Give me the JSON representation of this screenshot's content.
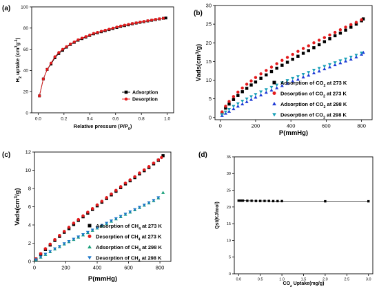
{
  "chart_data": [
    {
      "panel": "(a)",
      "type": "line",
      "title": "",
      "xlabel": "Relative pressure (P/P0)",
      "xlabel_main": "Relative pressure (P/P",
      "xlabel_sub": "0",
      "xlabel_tail": ")",
      "ylabel": "H2 uptake (cm3g-1)",
      "ylabel_parts": {
        "a": "H",
        "a_sub": "2",
        "b": " uptake (cm",
        "b_sup": "3",
        "c": "g",
        "c_sup": "-1",
        "d": ")"
      },
      "xlim": [
        -0.05,
        1.05
      ],
      "ylim": [
        0,
        100
      ],
      "xticks": [
        "0.0",
        "0.2",
        "0.4",
        "0.6",
        "0.8",
        "1.0"
      ],
      "yticks": [
        "0",
        "20",
        "40",
        "60",
        "80",
        "100"
      ],
      "legend": "center-right",
      "series": [
        {
          "name": "Adsorption",
          "marker": "square",
          "color": "#000000",
          "x": [
            0.01,
            0.04,
            0.07,
            0.1,
            0.13,
            0.16,
            0.19,
            0.22,
            0.25,
            0.28,
            0.31,
            0.34,
            0.37,
            0.4,
            0.43,
            0.46,
            0.49,
            0.52,
            0.55,
            0.58,
            0.61,
            0.64,
            0.67,
            0.7,
            0.73,
            0.76,
            0.79,
            0.82,
            0.85,
            0.88,
            0.91,
            0.94,
            0.97,
            0.99
          ],
          "y": [
            16,
            32,
            41,
            46,
            52,
            56,
            59,
            62,
            64.5,
            66.5,
            68.5,
            70,
            71.5,
            73,
            74.5,
            75.5,
            76.5,
            77.5,
            78.5,
            79.5,
            80.5,
            81.5,
            82.3,
            83,
            84,
            84.7,
            85.4,
            86,
            86.7,
            87.3,
            88,
            88.6,
            89.2,
            89.5
          ]
        },
        {
          "name": "Desorption",
          "marker": "circle",
          "color": "#e31a1c",
          "x": [
            0.01,
            0.04,
            0.07,
            0.1,
            0.13,
            0.16,
            0.19,
            0.22,
            0.25,
            0.28,
            0.31,
            0.34,
            0.37,
            0.4,
            0.43,
            0.46,
            0.49,
            0.52,
            0.55,
            0.58,
            0.61,
            0.64,
            0.67,
            0.7,
            0.73,
            0.76,
            0.79,
            0.82,
            0.85,
            0.88,
            0.91,
            0.94,
            0.97
          ],
          "y": [
            16,
            32,
            41,
            47,
            53,
            57,
            60,
            62.5,
            65,
            67,
            69,
            70.5,
            72,
            73.5,
            75,
            76,
            77,
            78,
            79,
            80,
            81,
            82,
            82.8,
            83.5,
            84.3,
            85,
            85.7,
            86.3,
            87,
            87.6,
            88.2,
            88.8,
            89.3
          ]
        }
      ]
    },
    {
      "panel": "(b)",
      "type": "scatter",
      "title": "",
      "xlabel": "P(mmHg)",
      "ylabel": "Vads(cm3/g)",
      "ylabel_parts": {
        "a": "Vads(cm",
        "a_sup": "3",
        "b": "/g)"
      },
      "xlim": [
        -30,
        860
      ],
      "ylim": [
        -0.6,
        30
      ],
      "xticks": [
        "0",
        "200",
        "400",
        "600",
        "800"
      ],
      "yticks": [
        "0",
        "5",
        "10",
        "15",
        "20",
        "25",
        "30"
      ],
      "legend": "bottom-right",
      "series": [
        {
          "name": "Adsorption of CO2 at 273 K",
          "name_main": "Adsorption of CO",
          "name_sub": "2",
          "name_tail": " at 273 K",
          "marker": "square",
          "color": "#000000",
          "x": [
            10,
            30,
            50,
            75,
            100,
            125,
            150,
            175,
            200,
            230,
            260,
            290,
            320,
            350,
            380,
            410,
            440,
            470,
            500,
            530,
            560,
            590,
            620,
            650,
            680,
            710,
            740,
            770,
            800,
            810
          ],
          "y": [
            1.2,
            2.5,
            3.6,
            4.8,
            5.9,
            6.9,
            7.8,
            8.7,
            9.5,
            10.5,
            11.4,
            12.3,
            13.2,
            14.0,
            14.8,
            15.6,
            16.4,
            17.2,
            17.9,
            18.7,
            19.5,
            20.3,
            21.1,
            21.9,
            22.6,
            23.4,
            24.2,
            25.0,
            25.9,
            26.4
          ]
        },
        {
          "name": "Desorption of CO2 at 273 K",
          "name_main": "Desorption of CO",
          "name_sub": "2",
          "name_tail": " at 273 K",
          "marker": "circle",
          "color": "#e31a1c",
          "x": [
            10,
            30,
            50,
            75,
            100,
            125,
            150,
            175,
            200,
            230,
            260,
            290,
            320,
            350,
            380,
            410,
            440,
            470,
            500,
            530,
            560,
            590,
            620,
            650,
            680,
            710,
            740,
            770,
            800
          ],
          "y": [
            1.5,
            3.0,
            4.3,
            5.6,
            6.8,
            7.9,
            8.9,
            9.8,
            10.7,
            11.7,
            12.6,
            13.5,
            14.4,
            15.3,
            16.1,
            16.9,
            17.7,
            18.5,
            19.2,
            20.0,
            20.7,
            21.4,
            22.1,
            22.8,
            23.5,
            24.2,
            24.9,
            25.5,
            26.2
          ]
        },
        {
          "name": "Adsorption of CO2 at 298 K",
          "name_main": "Adsorption of CO",
          "name_sub": "2",
          "name_tail": " at 298 K",
          "marker": "triangle-up",
          "color": "#1f3bd6",
          "x": [
            10,
            30,
            50,
            75,
            100,
            125,
            150,
            175,
            200,
            230,
            260,
            290,
            320,
            350,
            380,
            410,
            440,
            470,
            500,
            530,
            560,
            590,
            620,
            650,
            680,
            710,
            740,
            770,
            800,
            810
          ],
          "y": [
            0.5,
            1.1,
            1.6,
            2.3,
            3.0,
            3.6,
            4.2,
            4.8,
            5.4,
            6.0,
            6.7,
            7.3,
            7.9,
            8.5,
            9.1,
            9.7,
            10.2,
            10.8,
            11.3,
            11.9,
            12.4,
            13.0,
            13.5,
            14.1,
            14.6,
            15.1,
            15.6,
            16.2,
            16.9,
            17.4
          ]
        },
        {
          "name": "Desorption of CO2 at 298 K",
          "name_main": "Desorption of CO",
          "name_sub": "2",
          "name_tail": " at 298 K",
          "marker": "triangle-down",
          "color": "#1aa0b8",
          "x": [
            10,
            30,
            50,
            75,
            100,
            125,
            150,
            175,
            200,
            230,
            260,
            290,
            320,
            350,
            380,
            410,
            440,
            470,
            500,
            530,
            560,
            590,
            620,
            650,
            680,
            710,
            740,
            770,
            800
          ],
          "y": [
            0.8,
            1.5,
            2.2,
            3.0,
            3.7,
            4.4,
            5.0,
            5.6,
            6.2,
            6.9,
            7.5,
            8.1,
            8.7,
            9.3,
            9.9,
            10.5,
            11.0,
            11.6,
            12.1,
            12.7,
            13.2,
            13.7,
            14.2,
            14.7,
            15.2,
            15.7,
            16.2,
            16.7,
            17.3
          ]
        }
      ]
    },
    {
      "panel": "(c)",
      "type": "scatter",
      "title": "",
      "xlabel": "P(mmHg)",
      "ylabel": "Vads(cm3/g)",
      "ylabel_parts": {
        "a": "Vads(cm",
        "a_sup": "3",
        "b": "/g)"
      },
      "xlim": [
        0,
        870
      ],
      "ylim": [
        0,
        12
      ],
      "xticks": [
        "0",
        "200",
        "400",
        "600",
        "800"
      ],
      "yticks": [
        "0",
        "2",
        "4",
        "6",
        "8",
        "10",
        "12"
      ],
      "legend": "bottom-right",
      "series": [
        {
          "name": "Adsorption of CH4 at 273 K",
          "name_main": "Adsorption of CH",
          "name_sub": "4",
          "name_tail": " at 273 K",
          "marker": "square",
          "color": "#000000",
          "x": [
            10,
            40,
            70,
            100,
            130,
            160,
            190,
            220,
            250,
            280,
            310,
            340,
            370,
            400,
            430,
            460,
            490,
            520,
            550,
            580,
            610,
            640,
            670,
            700,
            730,
            760,
            790,
            820
          ],
          "y": [
            0.25,
            0.8,
            1.3,
            1.8,
            2.3,
            2.75,
            3.2,
            3.6,
            4.05,
            4.5,
            4.9,
            5.3,
            5.7,
            6.1,
            6.5,
            6.9,
            7.3,
            7.7,
            8.1,
            8.5,
            8.85,
            9.2,
            9.6,
            9.95,
            10.3,
            10.7,
            11.1,
            11.6
          ]
        },
        {
          "name": "Desorption of CH4 at 273 K",
          "name_main": "Desorption of CH",
          "name_sub": "4",
          "name_tail": " at 273 K",
          "marker": "circle",
          "color": "#e31a1c",
          "x": [
            10,
            40,
            70,
            100,
            130,
            160,
            190,
            220,
            250,
            280,
            310,
            340,
            370,
            400,
            430,
            460,
            490,
            520,
            550,
            580,
            610,
            640,
            670,
            700,
            730,
            760,
            790,
            810
          ],
          "y": [
            0.3,
            0.85,
            1.4,
            1.9,
            2.4,
            2.85,
            3.3,
            3.75,
            4.2,
            4.6,
            5.0,
            5.4,
            5.8,
            6.2,
            6.6,
            7.0,
            7.4,
            7.8,
            8.2,
            8.6,
            8.95,
            9.3,
            9.7,
            10.05,
            10.4,
            10.8,
            11.15,
            11.4
          ]
        },
        {
          "name": "Adsorption of CH4 at 298 K",
          "name_main": "Adsorption of CH",
          "name_sub": "4",
          "name_tail": " at 298 K",
          "marker": "triangle-up",
          "color": "#1aa07a",
          "x": [
            10,
            40,
            70,
            100,
            130,
            160,
            190,
            220,
            250,
            280,
            310,
            340,
            370,
            400,
            430,
            460,
            490,
            520,
            550,
            580,
            610,
            640,
            670,
            700,
            730,
            760,
            790,
            820
          ],
          "y": [
            0.15,
            0.45,
            0.75,
            1.05,
            1.35,
            1.6,
            1.9,
            2.15,
            2.4,
            2.65,
            2.9,
            3.15,
            3.4,
            3.65,
            3.9,
            4.15,
            4.4,
            4.65,
            4.9,
            5.15,
            5.4,
            5.65,
            5.9,
            6.15,
            6.4,
            6.65,
            6.95,
            7.55
          ]
        },
        {
          "name": "Desorption of CH4 at 298 K",
          "name_main": "Desorption of CH",
          "name_sub": "4",
          "name_tail": " at 298 K",
          "marker": "triangle-down",
          "color": "#1f78c8",
          "x": [
            10,
            40,
            70,
            100,
            130,
            160,
            190,
            220,
            250,
            280,
            310,
            340,
            370,
            400,
            430,
            460,
            490,
            520,
            550,
            580,
            610,
            640,
            670,
            700,
            730,
            760,
            790
          ],
          "y": [
            0.2,
            0.5,
            0.8,
            1.1,
            1.4,
            1.65,
            1.95,
            2.2,
            2.45,
            2.7,
            2.95,
            3.2,
            3.45,
            3.7,
            3.95,
            4.2,
            4.45,
            4.7,
            4.95,
            5.2,
            5.45,
            5.7,
            5.95,
            6.2,
            6.45,
            6.7,
            7.0
          ]
        }
      ]
    },
    {
      "panel": "(d)",
      "type": "line",
      "title": "",
      "xlabel": "CO2 Uptake(mg/g)",
      "xlabel_main": "CO",
      "xlabel_sub": "2",
      "xlabel_tail": " Uptake(mg/g)",
      "ylabel": "Qst(KJ/mol)",
      "xlim": [
        -0.1,
        3.1
      ],
      "ylim": [
        0,
        35
      ],
      "xticks": [
        "0.0",
        "0.5",
        "1.0",
        "1.5",
        "2.0",
        "2.5",
        "3.0"
      ],
      "yticks": [
        "0",
        "5",
        "10",
        "15",
        "20",
        "25",
        "30",
        "35"
      ],
      "series": [
        {
          "marker": "square",
          "color": "#000000",
          "x": [
            0.0,
            0.05,
            0.1,
            0.2,
            0.3,
            0.4,
            0.5,
            0.6,
            0.7,
            0.8,
            0.9,
            1.0,
            2.0,
            3.0
          ],
          "y": [
            21.9,
            21.9,
            21.9,
            21.85,
            21.85,
            21.8,
            21.8,
            21.8,
            21.8,
            21.75,
            21.75,
            21.75,
            21.7,
            21.7
          ]
        }
      ]
    }
  ]
}
